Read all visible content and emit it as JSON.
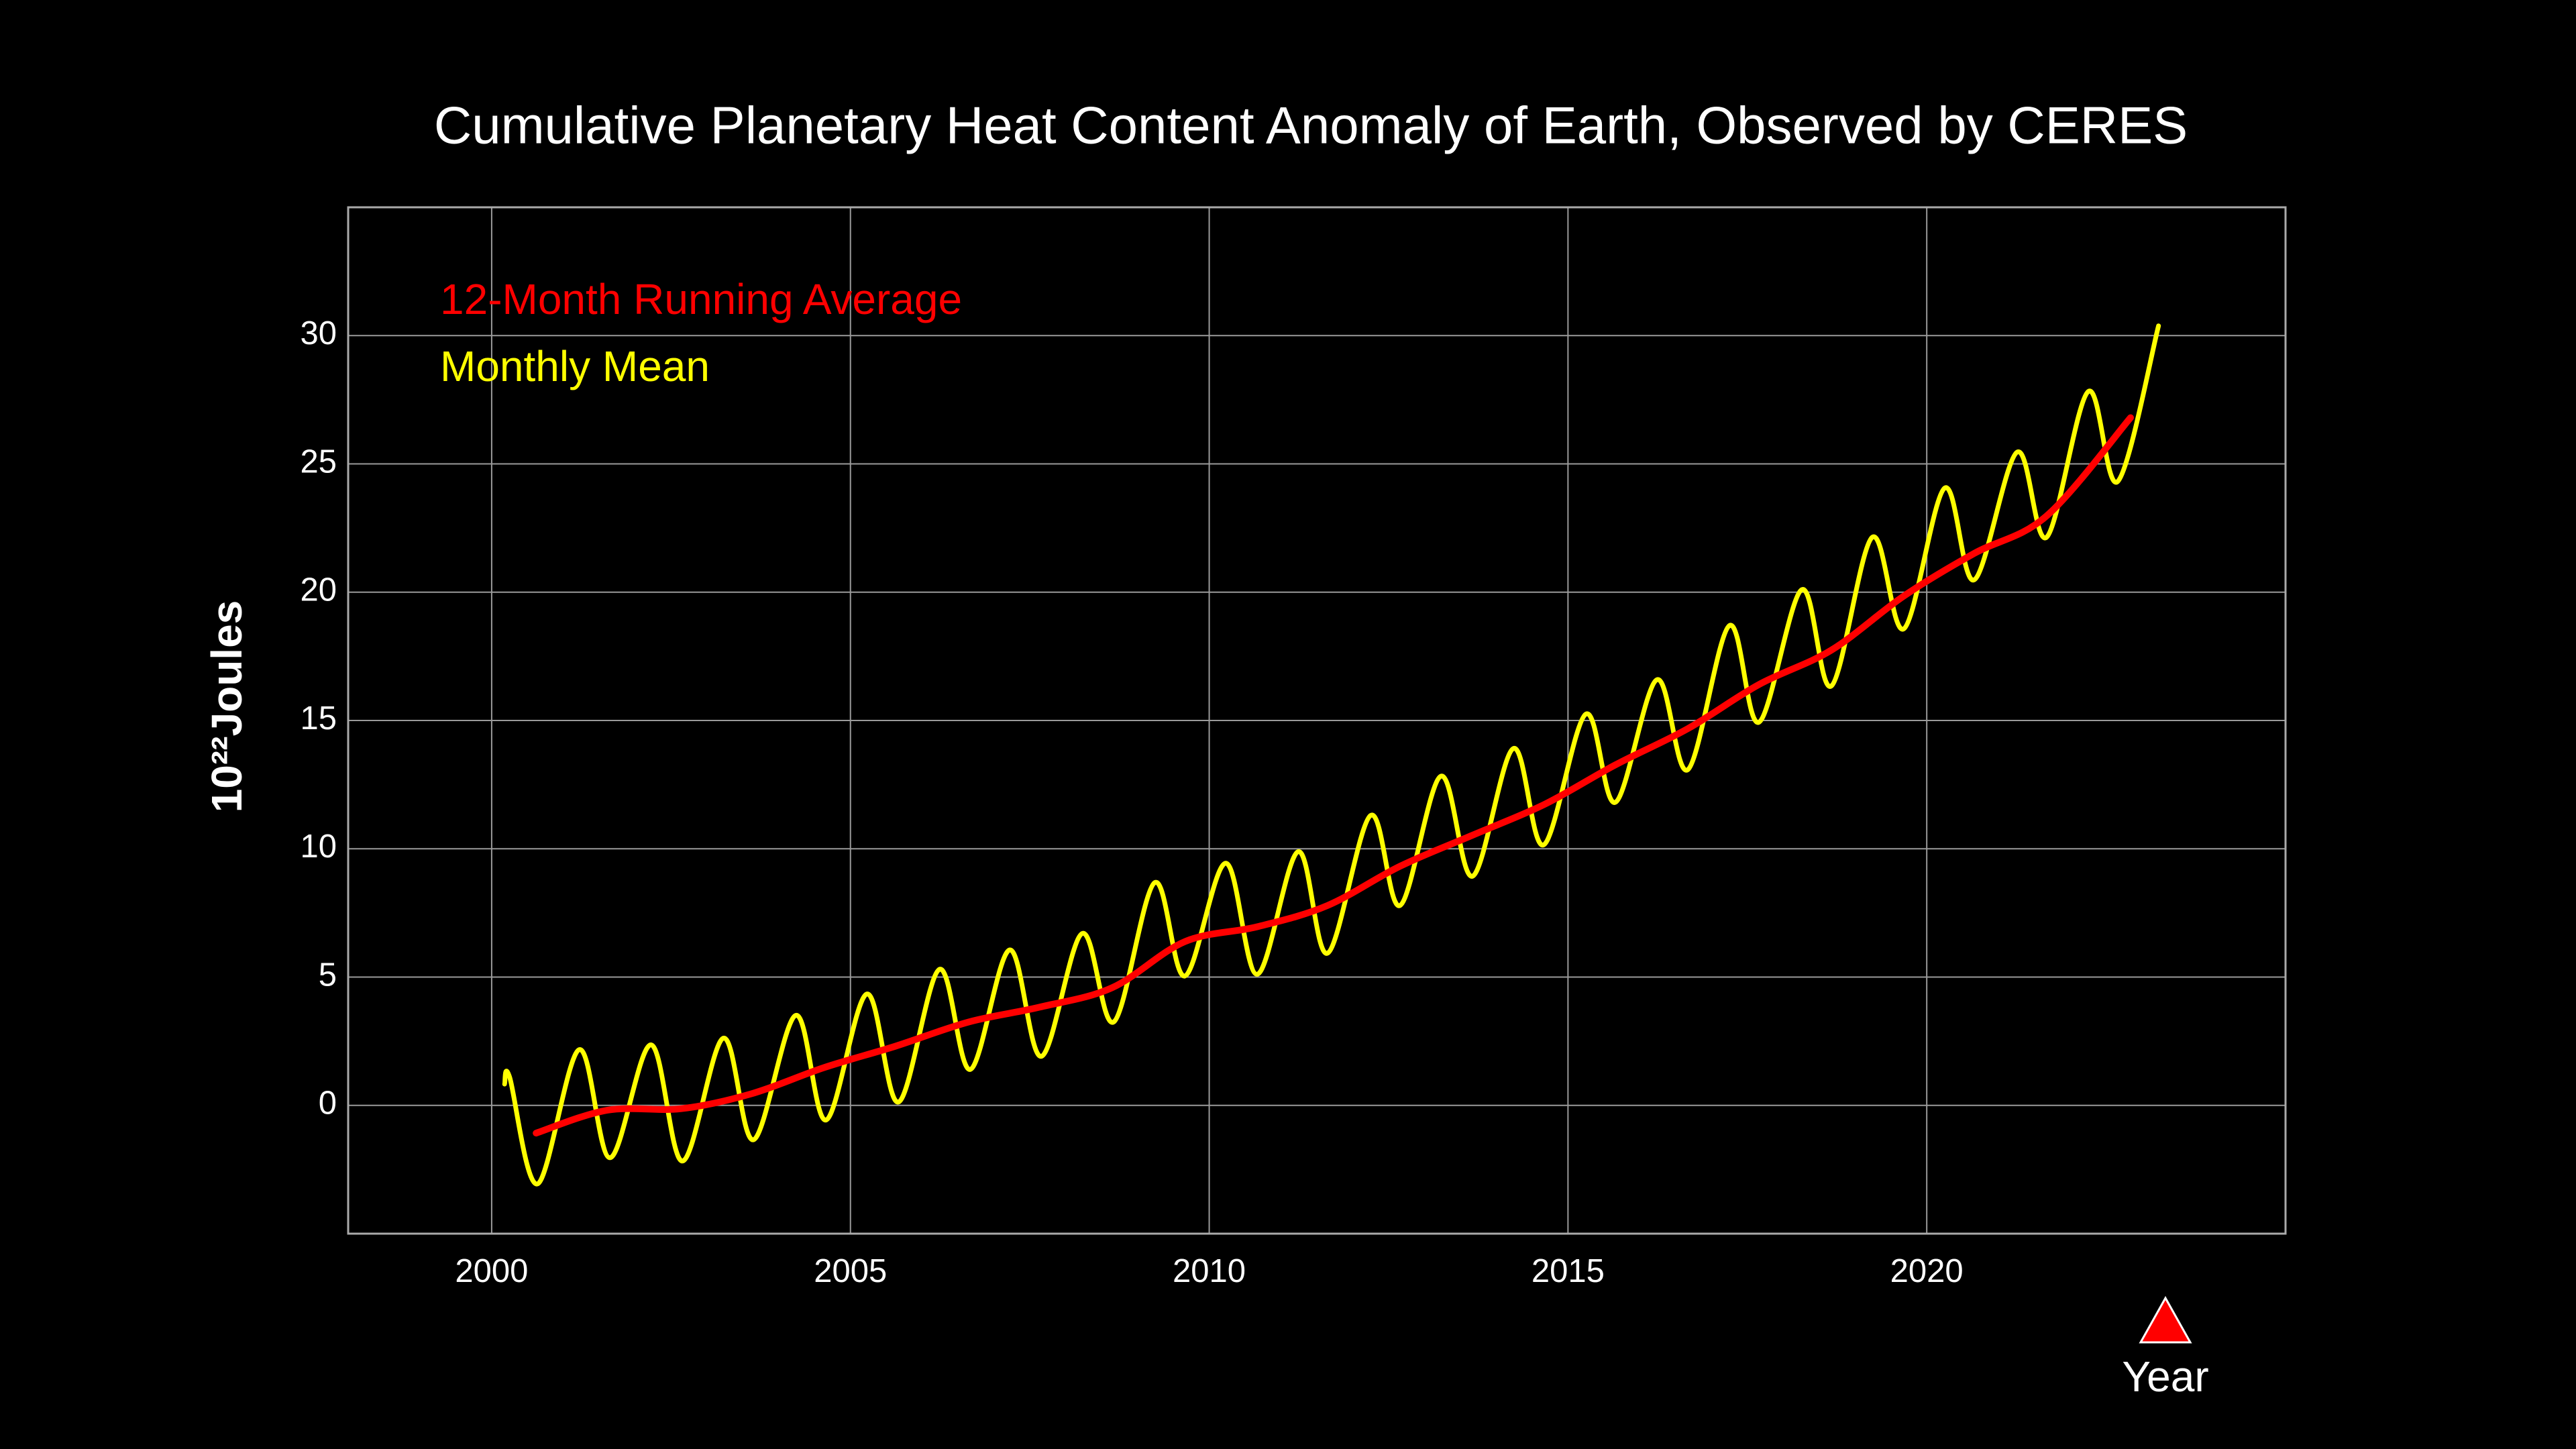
{
  "chart_data": {
    "type": "line",
    "title": "Cumulative Planetary Heat Content Anomaly of Earth, Observed by CERES",
    "xlabel": "Year",
    "ylabel": "10²²Joules",
    "xlim": [
      1998,
      2025
    ],
    "xticks": [
      2000,
      2005,
      2010,
      2015,
      2020
    ],
    "ylim": [
      -5,
      35
    ],
    "yticks": [
      0,
      5,
      10,
      15,
      20,
      25,
      30
    ],
    "grid": true,
    "legend": "upper left",
    "series": [
      {
        "name": "12-Month Running Average",
        "color": "#ff0000",
        "x": [
          2000.62,
          2001.61,
          2002.64,
          2003.62,
          2004.63,
          2005.62,
          2006.65,
          2007.64,
          2008.65,
          2009.66,
          2010.67,
          2011.65,
          2012.66,
          2013.67,
          2014.68,
          2015.66,
          2016.67,
          2017.66,
          2018.67,
          2019.68,
          2020.66,
          2021.67,
          2022.84
        ],
        "values": [
          -1.08,
          -0.19,
          -0.13,
          0.45,
          1.47,
          2.3,
          3.25,
          3.83,
          4.59,
          6.38,
          6.96,
          7.79,
          9.32,
          10.53,
          11.74,
          13.27,
          14.68,
          16.4,
          17.74,
          19.85,
          21.51,
          22.97,
          26.8
        ]
      },
      {
        "name": "Monthly Mean",
        "color": "#ffff00",
        "x": [
          2000.18,
          2000.25,
          2000.64,
          2001.22,
          2001.65,
          2002.22,
          2002.66,
          2003.23,
          2003.65,
          2004.24,
          2004.66,
          2005.23,
          2005.67,
          2006.24,
          2006.67,
          2007.22,
          2007.66,
          2008.23,
          2008.67,
          2009.24,
          2009.66,
          2010.23,
          2010.67,
          2011.24,
          2011.65,
          2012.25,
          2012.66,
          2013.23,
          2013.67,
          2014.24,
          2014.66,
          2015.25,
          2015.66,
          2016.24,
          2016.67,
          2017.25,
          2017.66,
          2018.26,
          2018.67,
          2019.24,
          2019.68,
          2020.25,
          2020.66,
          2021.26,
          2021.67,
          2022.25,
          2022.66,
          2023.23
        ],
        "values": [
          0.83,
          1.1,
          -3.06,
          2.17,
          -2.04,
          2.36,
          -2.17,
          2.62,
          -1.34,
          3.51,
          -0.57,
          4.34,
          0.13,
          5.3,
          1.4,
          6.06,
          1.91,
          6.7,
          3.25,
          8.68,
          5.04,
          9.44,
          5.11,
          9.89,
          5.93,
          11.3,
          7.79,
          12.83,
          8.93,
          13.91,
          10.15,
          15.25,
          11.81,
          16.59,
          13.08,
          18.7,
          14.93,
          20.1,
          16.34,
          22.14,
          18.57,
          24.06,
          20.48,
          25.46,
          22.14,
          27.82,
          24.31,
          30.38
        ]
      }
    ]
  }
}
